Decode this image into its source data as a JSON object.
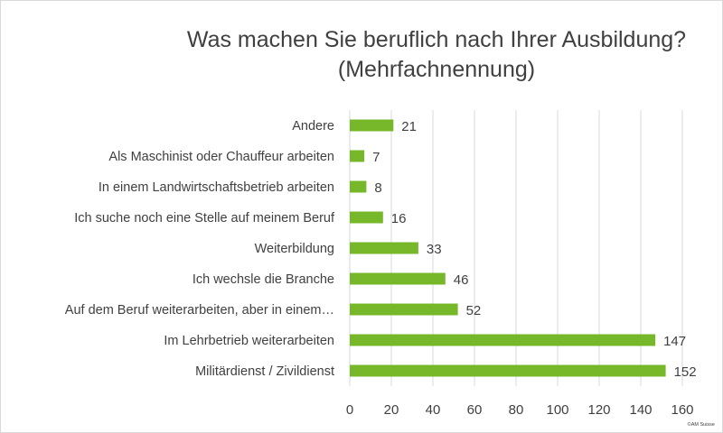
{
  "chart_data": {
    "type": "bar",
    "orientation": "horizontal",
    "title": "Was machen Sie beruflich nach Ihrer Ausbildung?",
    "subtitle": "(Mehrfachnennung)",
    "categories": [
      "Andere",
      "Als Maschinist oder Chauffeur arbeiten",
      "In einem Landwirtschaftsbetrieb arbeiten",
      "Ich suche noch eine Stelle auf meinem Beruf",
      "Weiterbildung",
      "Ich wechsle die Branche",
      "Auf dem Beruf weiterarbeiten, aber in einem…",
      "Im Lehrbetrieb weiterarbeiten",
      "Militärdienst / Zivildienst"
    ],
    "values": [
      21,
      7,
      8,
      16,
      33,
      46,
      52,
      147,
      152
    ],
    "xlim": [
      0,
      160
    ],
    "x_ticks": [
      0,
      20,
      40,
      60,
      80,
      100,
      120,
      140,
      160
    ],
    "xlabel": "",
    "ylabel": "",
    "grid": "vertical",
    "legend": "none",
    "bar_color": "#77b82a",
    "data_labels": true,
    "credit": "©AM Suisse"
  }
}
